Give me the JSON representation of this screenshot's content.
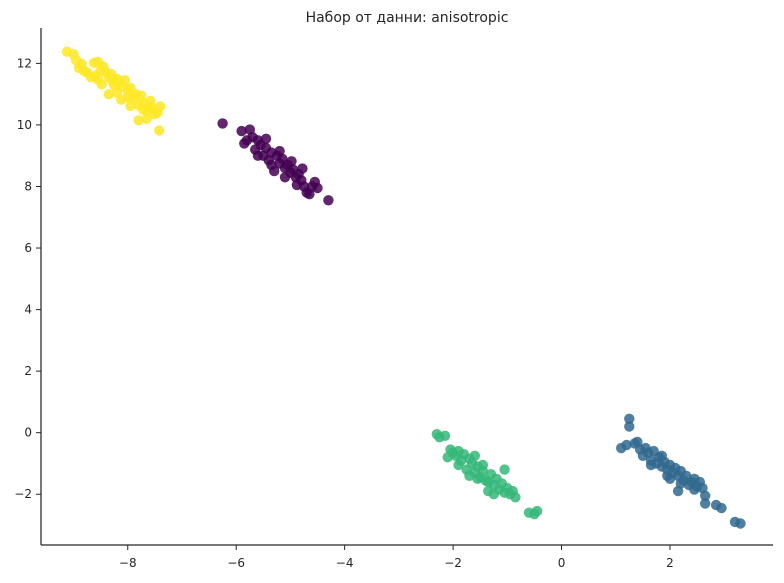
{
  "chart_data": {
    "type": "scatter",
    "title": "Набор от данни: anisotropic",
    "xlabel": "",
    "ylabel": "",
    "xlim": [
      -9.6,
      3.9
    ],
    "ylim": [
      -3.65,
      13.15
    ],
    "xticks": [
      -8,
      -6,
      -4,
      -2,
      0,
      2
    ],
    "xtick_labels": [
      "−8",
      "−6",
      "−4",
      "−2",
      "0",
      "2"
    ],
    "yticks": [
      -2,
      0,
      2,
      4,
      6,
      8,
      10,
      12
    ],
    "ytick_labels": [
      "−2",
      "0",
      "2",
      "4",
      "6",
      "8",
      "10",
      "12"
    ],
    "grid": false,
    "legend": "none",
    "series": [
      {
        "color": "#fde725",
        "points": [
          [
            -9.12,
            12.38
          ],
          [
            -9.0,
            12.3
          ],
          [
            -8.95,
            12.1
          ],
          [
            -8.85,
            11.98
          ],
          [
            -8.9,
            11.85
          ],
          [
            -8.75,
            11.7
          ],
          [
            -8.62,
            12.02
          ],
          [
            -8.55,
            12.05
          ],
          [
            -8.45,
            11.9
          ],
          [
            -8.6,
            11.6
          ],
          [
            -8.5,
            11.75
          ],
          [
            -8.4,
            11.72
          ],
          [
            -8.35,
            11.55
          ],
          [
            -8.3,
            11.65
          ],
          [
            -8.2,
            11.5
          ],
          [
            -8.15,
            11.38
          ],
          [
            -8.25,
            11.3
          ],
          [
            -8.1,
            11.25
          ],
          [
            -8.05,
            11.45
          ],
          [
            -8.0,
            11.1
          ],
          [
            -7.95,
            11.2
          ],
          [
            -7.85,
            11.0
          ],
          [
            -7.9,
            10.85
          ],
          [
            -7.75,
            10.95
          ],
          [
            -7.7,
            10.7
          ],
          [
            -7.6,
            10.6
          ],
          [
            -7.65,
            10.45
          ],
          [
            -7.55,
            10.55
          ],
          [
            -7.5,
            10.35
          ],
          [
            -7.45,
            10.4
          ],
          [
            -7.4,
            10.6
          ],
          [
            -7.65,
            10.2
          ],
          [
            -7.8,
            10.15
          ],
          [
            -7.42,
            9.82
          ],
          [
            -8.28,
            11.42
          ],
          [
            -8.0,
            10.9
          ],
          [
            -7.8,
            10.65
          ],
          [
            -8.68,
            11.55
          ],
          [
            -8.35,
            11.0
          ],
          [
            -8.12,
            10.82
          ],
          [
            -7.72,
            10.5
          ],
          [
            -8.48,
            11.32
          ],
          [
            -8.8,
            11.75
          ],
          [
            -8.55,
            11.48
          ],
          [
            -7.95,
            10.62
          ],
          [
            -7.58,
            10.78
          ],
          [
            -8.2,
            11.05
          ]
        ]
      },
      {
        "color": "#440154",
        "points": [
          [
            -6.25,
            10.05
          ],
          [
            -5.9,
            9.8
          ],
          [
            -5.75,
            9.85
          ],
          [
            -5.85,
            9.4
          ],
          [
            -5.6,
            9.5
          ],
          [
            -5.65,
            9.2
          ],
          [
            -5.55,
            9.35
          ],
          [
            -5.5,
            9.0
          ],
          [
            -5.45,
            9.25
          ],
          [
            -5.35,
            9.1
          ],
          [
            -5.4,
            8.85
          ],
          [
            -5.25,
            9.0
          ],
          [
            -5.2,
            8.75
          ],
          [
            -5.15,
            8.9
          ],
          [
            -5.1,
            8.6
          ],
          [
            -5.05,
            8.7
          ],
          [
            -5.0,
            8.45
          ],
          [
            -4.95,
            8.55
          ],
          [
            -4.9,
            8.3
          ],
          [
            -4.85,
            8.4
          ],
          [
            -4.8,
            8.2
          ],
          [
            -4.75,
            8.0
          ],
          [
            -4.7,
            7.8
          ],
          [
            -4.65,
            7.75
          ],
          [
            -4.6,
            8.0
          ],
          [
            -4.5,
            7.95
          ],
          [
            -4.55,
            8.15
          ],
          [
            -4.3,
            7.55
          ],
          [
            -5.3,
            8.5
          ],
          [
            -5.7,
            9.6
          ],
          [
            -5.45,
            9.55
          ],
          [
            -5.2,
            9.15
          ],
          [
            -4.98,
            8.82
          ],
          [
            -4.78,
            8.58
          ],
          [
            -5.6,
            9.0
          ],
          [
            -5.35,
            8.7
          ],
          [
            -5.1,
            8.3
          ],
          [
            -4.88,
            8.05
          ],
          [
            -5.8,
            9.5
          ]
        ]
      },
      {
        "color": "#35b779",
        "points": [
          [
            -2.3,
            -0.05
          ],
          [
            -2.25,
            -0.15
          ],
          [
            -2.15,
            -0.1
          ],
          [
            -2.05,
            -0.55
          ],
          [
            -2.0,
            -0.65
          ],
          [
            -2.1,
            -0.8
          ],
          [
            -1.95,
            -0.75
          ],
          [
            -1.85,
            -0.9
          ],
          [
            -1.9,
            -1.05
          ],
          [
            -1.8,
            -0.7
          ],
          [
            -1.7,
            -0.85
          ],
          [
            -1.65,
            -1.0
          ],
          [
            -1.75,
            -1.2
          ],
          [
            -1.6,
            -1.3
          ],
          [
            -1.55,
            -1.1
          ],
          [
            -1.5,
            -1.45
          ],
          [
            -1.45,
            -1.25
          ],
          [
            -1.4,
            -1.55
          ],
          [
            -1.35,
            -1.6
          ],
          [
            -1.3,
            -1.35
          ],
          [
            -1.25,
            -1.7
          ],
          [
            -1.2,
            -1.5
          ],
          [
            -1.15,
            -1.85
          ],
          [
            -1.1,
            -1.65
          ],
          [
            -1.05,
            -1.95
          ],
          [
            -1.0,
            -1.8
          ],
          [
            -0.95,
            -2.0
          ],
          [
            -0.9,
            -1.9
          ],
          [
            -0.85,
            -2.1
          ],
          [
            -0.6,
            -2.6
          ],
          [
            -0.45,
            -2.55
          ],
          [
            -0.5,
            -2.65
          ],
          [
            -1.6,
            -0.75
          ],
          [
            -1.05,
            -1.2
          ],
          [
            -1.35,
            -1.9
          ],
          [
            -1.55,
            -1.5
          ],
          [
            -1.25,
            -2.0
          ],
          [
            -1.7,
            -1.4
          ],
          [
            -1.45,
            -1.05
          ],
          [
            -1.9,
            -0.6
          ]
        ]
      },
      {
        "color": "#31688e",
        "points": [
          [
            1.25,
            0.45
          ],
          [
            1.25,
            0.2
          ],
          [
            1.1,
            -0.5
          ],
          [
            1.2,
            -0.4
          ],
          [
            1.35,
            -0.35
          ],
          [
            1.45,
            -0.55
          ],
          [
            1.55,
            -0.5
          ],
          [
            1.5,
            -0.75
          ],
          [
            1.6,
            -0.65
          ],
          [
            1.65,
            -0.9
          ],
          [
            1.7,
            -0.6
          ],
          [
            1.75,
            -1.0
          ],
          [
            1.8,
            -0.8
          ],
          [
            1.85,
            -1.1
          ],
          [
            1.9,
            -0.95
          ],
          [
            1.95,
            -1.2
          ],
          [
            2.0,
            -1.05
          ],
          [
            2.05,
            -1.3
          ],
          [
            2.1,
            -1.15
          ],
          [
            2.15,
            -1.4
          ],
          [
            2.2,
            -1.25
          ],
          [
            2.25,
            -1.55
          ],
          [
            2.3,
            -1.4
          ],
          [
            2.35,
            -1.7
          ],
          [
            2.4,
            -1.6
          ],
          [
            2.45,
            -1.85
          ],
          [
            2.5,
            -1.75
          ],
          [
            2.55,
            -1.6
          ],
          [
            2.6,
            -1.8
          ],
          [
            2.65,
            -2.05
          ],
          [
            2.65,
            -2.3
          ],
          [
            2.85,
            -2.35
          ],
          [
            2.95,
            -2.45
          ],
          [
            3.2,
            -2.9
          ],
          [
            3.3,
            -2.95
          ],
          [
            1.65,
            -1.05
          ],
          [
            2.0,
            -1.5
          ],
          [
            1.85,
            -0.75
          ],
          [
            2.2,
            -1.65
          ],
          [
            2.45,
            -1.5
          ],
          [
            1.4,
            -0.3
          ],
          [
            1.95,
            -1.4
          ],
          [
            2.15,
            -1.9
          ]
        ]
      }
    ]
  }
}
